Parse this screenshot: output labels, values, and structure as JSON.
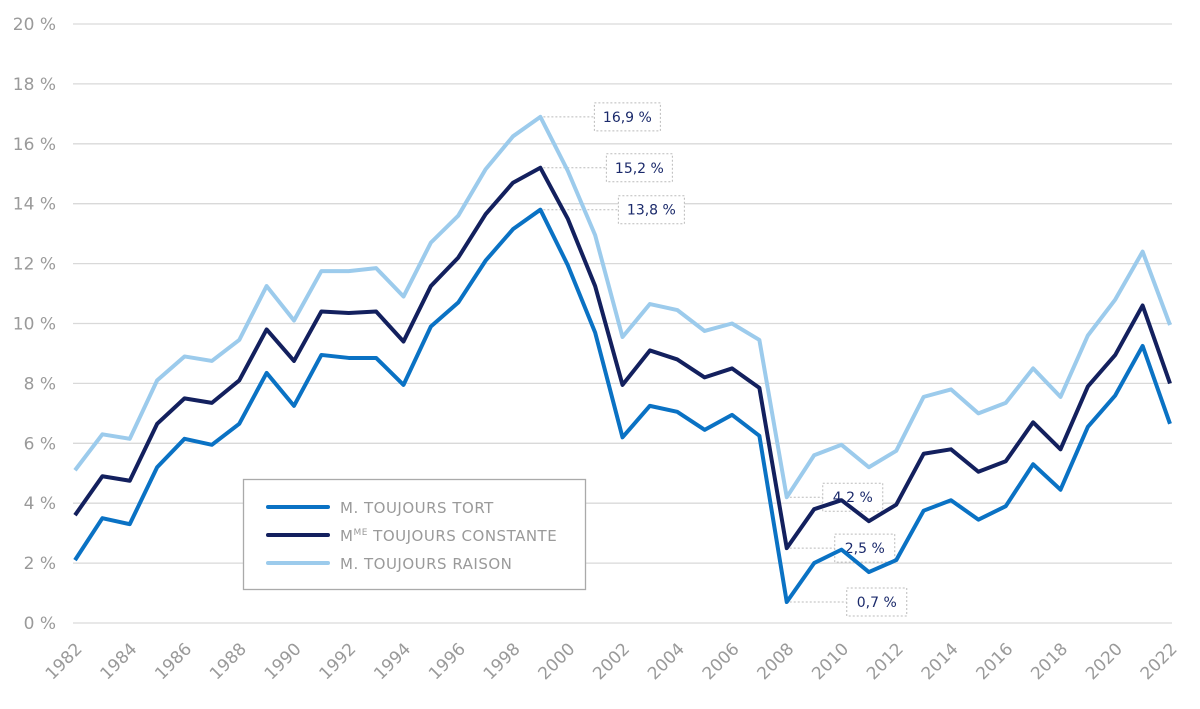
{
  "chart_data": {
    "type": "line",
    "x": [
      1982,
      1983,
      1984,
      1985,
      1986,
      1987,
      1988,
      1989,
      1990,
      1991,
      1992,
      1993,
      1994,
      1995,
      1996,
      1997,
      1998,
      1999,
      2000,
      2001,
      2002,
      2003,
      2004,
      2005,
      2006,
      2007,
      2008,
      2009,
      2010,
      2011,
      2012,
      2013,
      2014,
      2015,
      2016,
      2017,
      2018,
      2019,
      2020,
      2021,
      2022
    ],
    "xticks": [
      "1982",
      "1984",
      "1986",
      "1988",
      "1990",
      "1992",
      "1994",
      "1996",
      "1998",
      "2000",
      "2002",
      "2004",
      "2006",
      "2008",
      "2010",
      "2012",
      "2014",
      "2016",
      "2018",
      "2020",
      "2022"
    ],
    "yticks": [
      "0 %",
      "2 %",
      "4 %",
      "6 %",
      "8 %",
      "10 %",
      "12 %",
      "14 %",
      "16 %",
      "18 %",
      "20 %"
    ],
    "ylim": [
      0,
      20
    ],
    "grid": true,
    "legend_placement": "bottom-left",
    "series": [
      {
        "name": "M. TOUJOURS TORT",
        "color": "#0a72c4",
        "values": [
          2.1,
          3.5,
          3.3,
          5.2,
          6.15,
          5.95,
          6.65,
          8.35,
          7.25,
          8.95,
          8.85,
          8.85,
          7.95,
          9.9,
          10.7,
          12.1,
          13.15,
          13.8,
          11.95,
          9.7,
          6.2,
          7.25,
          7.05,
          6.45,
          6.95,
          6.25,
          0.7,
          2.0,
          2.45,
          1.7,
          2.1,
          3.75,
          4.1,
          3.45,
          3.9,
          5.3,
          4.45,
          6.55,
          7.6,
          9.25,
          6.65
        ]
      },
      {
        "name": "Mme TOUJOURS CONSTANTE",
        "name_main": "M",
        "name_sup": "ME",
        "name_rest": " TOUJOURS CONSTANTE",
        "color": "#13205e",
        "values": [
          3.6,
          4.9,
          4.75,
          6.65,
          7.5,
          7.35,
          8.1,
          9.8,
          8.75,
          10.4,
          10.35,
          10.4,
          9.4,
          11.25,
          12.2,
          13.65,
          14.7,
          15.2,
          13.5,
          11.25,
          7.95,
          9.1,
          8.8,
          8.2,
          8.5,
          7.85,
          2.5,
          3.8,
          4.1,
          3.4,
          3.95,
          5.65,
          5.8,
          5.05,
          5.4,
          6.7,
          5.8,
          7.9,
          8.95,
          10.6,
          8.0
        ]
      },
      {
        "name": "M. TOUJOURS RAISON",
        "color": "#9ccbec",
        "values": [
          5.1,
          6.3,
          6.15,
          8.1,
          8.9,
          8.75,
          9.45,
          11.25,
          10.1,
          11.75,
          11.75,
          11.85,
          10.9,
          12.7,
          13.6,
          15.15,
          16.25,
          16.9,
          15.1,
          12.95,
          9.55,
          10.65,
          10.45,
          9.75,
          10.0,
          9.45,
          4.2,
          5.6,
          5.95,
          5.2,
          5.75,
          7.55,
          7.8,
          7.0,
          7.35,
          8.5,
          7.55,
          9.6,
          10.8,
          12.4,
          9.95
        ]
      }
    ],
    "annotations": [
      {
        "text": "16,9 %",
        "year": 1999,
        "value": 16.9
      },
      {
        "text": "15,2 %",
        "year": 1999,
        "value": 15.2
      },
      {
        "text": "13,8 %",
        "year": 1999,
        "value": 13.8
      },
      {
        "text": "4,2 %",
        "year": 2008,
        "value": 4.2
      },
      {
        "text": "2,5 %",
        "year": 2008,
        "value": 2.5
      },
      {
        "text": "0,7 %",
        "year": 2008,
        "value": 0.7
      }
    ]
  }
}
